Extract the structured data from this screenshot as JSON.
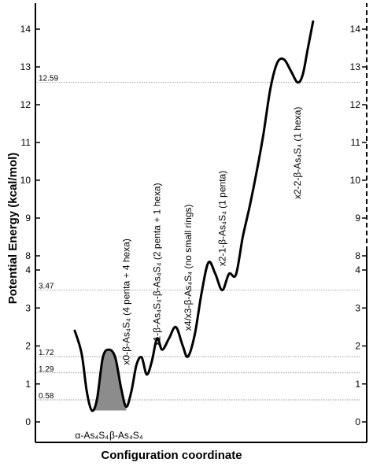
{
  "chart_data": {
    "type": "line",
    "title": "",
    "xlabel": "Configuration coordinate",
    "ylabel": "Potential Energy (kcal/mol)",
    "y_axis": {
      "lower_segment": {
        "range": [
          0,
          4.5
        ],
        "ticks": [
          0,
          1,
          2,
          3,
          4
        ]
      },
      "upper_segment": {
        "range": [
          7.5,
          14.5
        ],
        "ticks": [
          8,
          9,
          10,
          11,
          12,
          13,
          14
        ]
      },
      "axis_break": true
    },
    "grid": false,
    "legend": "none",
    "line_color": "#000000",
    "fill_color": "#8c8c8c",
    "reference_lines": [
      {
        "label": "0.58",
        "y": 0.58
      },
      {
        "label": "1.29",
        "y": 1.29
      },
      {
        "label": "1.72",
        "y": 1.72
      },
      {
        "label": "3.47",
        "y": 3.47
      },
      {
        "label": "12.59",
        "y": 12.59
      }
    ],
    "annotations": [
      {
        "text": "α-As₄S₄",
        "x": 0.5,
        "y": 0
      },
      {
        "text": "β-As₄S₄",
        "x": 1.5,
        "y": 0
      },
      {
        "text": "x0-β-As₄S₄  (4 penta + 4 hexa)",
        "x": 1.5,
        "y": 1.5
      },
      {
        "text": "x1-β-As₄S₄-β-As₄S₄  (2 penta + 1 hexa)",
        "x": 2.4,
        "y": 2.0
      },
      {
        "text": "x4/x3-β-As₄S₄  (no small rings)",
        "x": 3.3,
        "y": 2.4
      },
      {
        "text": "x2-1-β-As₄S₄  (1 penta)",
        "x": 4.3,
        "y": 4.1
      },
      {
        "text": "x2-2-β-As₄S₄  (1 hexa)",
        "x": 6.5,
        "y": 9.5
      }
    ],
    "series": [
      {
        "x": [
          0.0,
          0.2,
          0.35,
          0.5,
          0.65,
          0.82,
          1.0,
          1.18,
          1.35,
          1.5,
          1.65,
          1.8,
          1.95,
          2.1,
          2.25,
          2.4,
          2.55,
          2.75,
          2.95,
          3.15,
          3.3,
          3.5,
          3.7,
          3.9,
          4.1,
          4.3,
          4.5,
          4.7,
          4.9,
          5.1,
          5.3,
          5.5,
          5.7,
          5.9,
          6.1,
          6.3,
          6.5,
          6.65,
          6.8,
          6.95
        ],
        "y": [
          2.4,
          1.8,
          0.8,
          0.3,
          0.6,
          1.7,
          1.9,
          1.7,
          0.9,
          0.4,
          0.8,
          1.5,
          1.7,
          1.25,
          1.6,
          2.2,
          1.9,
          2.2,
          2.5,
          2.0,
          1.72,
          2.3,
          3.4,
          4.2,
          3.9,
          3.47,
          3.9,
          7.5,
          8.5,
          9.3,
          10.2,
          11.2,
          12.4,
          13.1,
          13.2,
          12.9,
          12.59,
          12.8,
          13.5,
          14.2
        ]
      }
    ],
    "shaded_region": {
      "x_from": 0.5,
      "x_to": 1.5
    }
  }
}
